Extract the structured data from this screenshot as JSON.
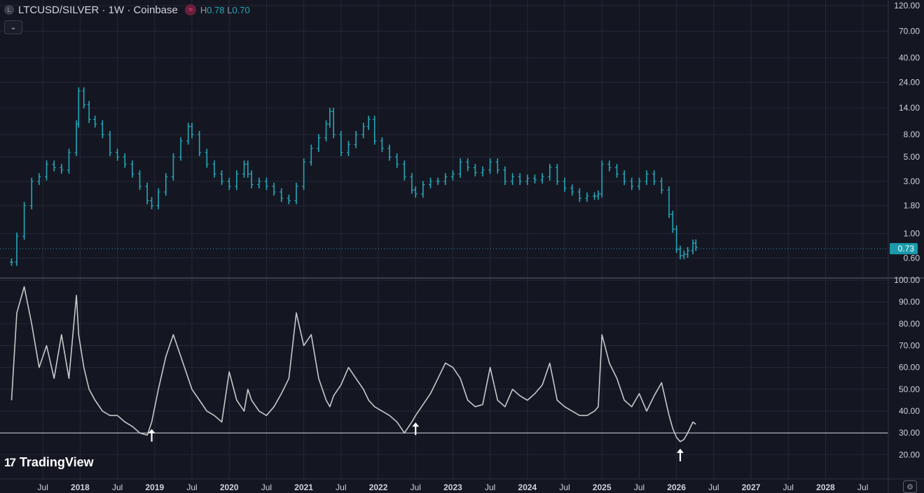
{
  "header": {
    "symbol_logo": "L",
    "title": "LTCUSD/SILVER · 1W · Coinbase",
    "stat_icon": "≈",
    "high_label": "H",
    "high_value": "0.78",
    "low_label": "L",
    "low_value": "0.70"
  },
  "collapse_icon": "⌄",
  "brand": {
    "mark": "17",
    "name": "TradingView"
  },
  "settings_icon": "⚙",
  "colors": {
    "background": "#141722",
    "grid": "#252936",
    "price_bars": "#26a6b8",
    "oscillator_line": "#c8c8c8",
    "price_tag": "#1a9aab"
  },
  "chart_data": [
    {
      "type": "line",
      "subtype": "ohlc-bars",
      "title": "LTCUSD/SILVER · 1W · Coinbase",
      "scale": "log",
      "ylim": [
        0.45,
        120
      ],
      "y_ticks": [
        120,
        70,
        40,
        24,
        14,
        8,
        5,
        3,
        1.8,
        1,
        0.6
      ],
      "y_tick_labels": [
        "120.00",
        "70.00",
        "40.00",
        "24.00",
        "14.00",
        "8.00",
        "5.00",
        "3.00",
        "1.80",
        "1.00",
        "0.60"
      ],
      "last_price": 0.73,
      "last_price_label": "0.73",
      "x_tick_labels": [
        "Jul",
        "2018",
        "Jul",
        "2019",
        "Jul",
        "2020",
        "Jul",
        "2021",
        "Jul",
        "2022",
        "Jul",
        "2023",
        "Jul",
        "2024",
        "Jul",
        "2025",
        "Jul",
        "2026",
        "Jul",
        "2027",
        "Jul",
        "2028",
        "Jul"
      ],
      "x_tick_dates": [
        2017.5,
        2018.0,
        2018.5,
        2019.0,
        2019.5,
        2020.0,
        2020.5,
        2021.0,
        2021.5,
        2022.0,
        2022.5,
        2023.0,
        2023.5,
        2024.0,
        2024.5,
        2025.0,
        2025.5,
        2026.0,
        2026.5,
        2027.0,
        2027.5,
        2028.0,
        2028.5
      ],
      "x": [
        2017.08,
        2017.15,
        2017.25,
        2017.35,
        2017.45,
        2017.55,
        2017.65,
        2017.75,
        2017.85,
        2017.95,
        2017.98,
        2018.05,
        2018.12,
        2018.2,
        2018.3,
        2018.4,
        2018.5,
        2018.6,
        2018.7,
        2018.8,
        2018.9,
        2018.96,
        2019.05,
        2019.15,
        2019.25,
        2019.35,
        2019.45,
        2019.5,
        2019.6,
        2019.7,
        2019.8,
        2019.9,
        2020.0,
        2020.1,
        2020.2,
        2020.25,
        2020.3,
        2020.4,
        2020.5,
        2020.6,
        2020.7,
        2020.8,
        2020.9,
        2021.0,
        2021.1,
        2021.2,
        2021.3,
        2021.35,
        2021.4,
        2021.5,
        2021.6,
        2021.7,
        2021.8,
        2021.87,
        2021.95,
        2022.05,
        2022.15,
        2022.25,
        2022.35,
        2022.45,
        2022.5,
        2022.6,
        2022.7,
        2022.8,
        2022.9,
        2023.0,
        2023.1,
        2023.2,
        2023.3,
        2023.4,
        2023.5,
        2023.6,
        2023.7,
        2023.8,
        2023.9,
        2024.0,
        2024.1,
        2024.2,
        2024.3,
        2024.4,
        2024.5,
        2024.6,
        2024.7,
        2024.8,
        2024.9,
        2024.95,
        2025.0,
        2025.1,
        2025.2,
        2025.3,
        2025.4,
        2025.5,
        2025.6,
        2025.7,
        2025.8,
        2025.9,
        2025.95,
        2026.0,
        2026.05,
        2026.1,
        2026.15,
        2026.22,
        2026.26
      ],
      "series": [
        {
          "values": [
            0.55,
            0.95,
            1.8,
            3.0,
            3.3,
            4.3,
            4.0,
            3.8,
            5.5,
            10.0,
            20.0,
            15.0,
            11.0,
            10.0,
            8.0,
            5.5,
            5.0,
            4.3,
            3.5,
            2.7,
            2.0,
            1.8,
            2.4,
            3.3,
            5.0,
            7.0,
            9.5,
            8.0,
            5.5,
            4.3,
            3.5,
            3.0,
            2.7,
            3.5,
            4.3,
            3.5,
            2.8,
            3.0,
            2.7,
            2.4,
            2.1,
            2.0,
            2.7,
            4.5,
            6.0,
            7.5,
            10.0,
            13.0,
            8.0,
            5.5,
            6.5,
            8.0,
            9.5,
            11.0,
            7.0,
            6.0,
            5.0,
            4.3,
            3.3,
            2.5,
            2.3,
            2.8,
            3.0,
            3.0,
            3.3,
            3.5,
            4.5,
            4.0,
            3.6,
            3.8,
            4.5,
            3.8,
            3.0,
            3.3,
            3.0,
            3.2,
            3.1,
            3.3,
            4.0,
            3.0,
            2.6,
            2.4,
            2.1,
            2.2,
            2.2,
            2.3,
            4.3,
            4.0,
            3.5,
            3.0,
            2.7,
            3.0,
            3.5,
            3.0,
            2.5,
            1.5,
            1.1,
            0.72,
            0.63,
            0.65,
            0.7,
            0.82,
            0.75
          ]
        },
        {
          "values": [
            45,
            85,
            97,
            80,
            60,
            70,
            55,
            75,
            55,
            93,
            75,
            60,
            50,
            45,
            40,
            38,
            38,
            35,
            33,
            30,
            29,
            35,
            50,
            65,
            75,
            65,
            55,
            50,
            45,
            40,
            38,
            35,
            58,
            45,
            40,
            50,
            45,
            40,
            38,
            42,
            48,
            55,
            85,
            70,
            75,
            55,
            45,
            42,
            47,
            52,
            60,
            55,
            50,
            45,
            42,
            40,
            38,
            35,
            30,
            35,
            38,
            43,
            48,
            55,
            62,
            60,
            55,
            45,
            42,
            43,
            60,
            45,
            42,
            50,
            47,
            45,
            48,
            52,
            62,
            45,
            42,
            40,
            38,
            38,
            40,
            42,
            75,
            62,
            55,
            45,
            42,
            48,
            40,
            47,
            53,
            38,
            32,
            28,
            26,
            27,
            30,
            35,
            34
          ]
        }
      ],
      "panes": [
        "price",
        "oscillator"
      ],
      "oscillator_ylim": [
        15,
        100
      ],
      "oscillator_y_ticks": [
        100,
        90,
        80,
        70,
        60,
        50,
        40,
        30,
        20
      ],
      "oscillator_y_tick_labels": [
        "100.00",
        "90.00",
        "80.00",
        "70.00",
        "60.00",
        "50.00",
        "40.00",
        "30.00",
        "20.00"
      ],
      "oscillator_hline": 30,
      "annotations": [
        {
          "type": "arrow-up",
          "x": 2018.96,
          "pane": "oscillator"
        },
        {
          "type": "arrow-up",
          "x": 2022.5,
          "pane": "oscillator"
        },
        {
          "type": "arrow-up",
          "x": 2026.05,
          "pane": "oscillator"
        }
      ]
    }
  ]
}
